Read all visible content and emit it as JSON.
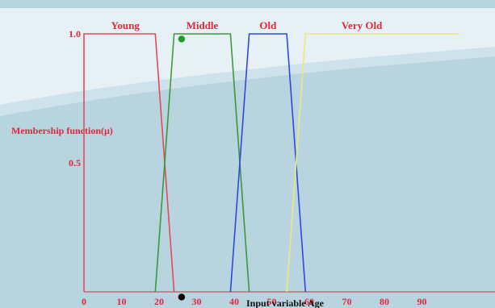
{
  "colors": {
    "background": "#b7d4df",
    "background_light": "#e7f1f5",
    "text_red": "#e0283a",
    "young": "#e24b58",
    "middle": "#3c9a3c",
    "old": "#2f48e0",
    "very_old": "#e9ea7a",
    "axis": "#c23a3a",
    "xlabel": "#111111"
  },
  "chart_data": {
    "type": "line",
    "ylabel": "Membership function(μ)",
    "xlabel": "Input variable Age",
    "xlim": [
      0,
      100
    ],
    "ylim": [
      0,
      1
    ],
    "x_ticks": [
      "0",
      "10",
      "20",
      "30",
      "40",
      "50",
      "60",
      "70",
      "80",
      "90"
    ],
    "y_ticks": [
      "0.5",
      "1.0"
    ],
    "series": [
      {
        "name": "Young",
        "color": "#e24b58",
        "x": [
          0,
          0,
          19,
          24
        ],
        "y": [
          0,
          1,
          1,
          0
        ]
      },
      {
        "name": "Middle",
        "color": "#3c9a3c",
        "x": [
          19,
          24,
          39,
          44
        ],
        "y": [
          0,
          1,
          1,
          0
        ]
      },
      {
        "name": "Old",
        "color": "#2f48e0",
        "x": [
          39,
          44,
          54,
          59
        ],
        "y": [
          0,
          1,
          1,
          0
        ]
      },
      {
        "name": "Very Old",
        "color": "#e9ea7a",
        "x": [
          54,
          59,
          100
        ],
        "y": [
          0,
          1,
          1
        ]
      }
    ],
    "markers": [
      {
        "color": "#1f9b2e",
        "x": 26,
        "y": 0.98
      },
      {
        "color": "#000000",
        "x": 26,
        "y": -0.02
      }
    ]
  }
}
